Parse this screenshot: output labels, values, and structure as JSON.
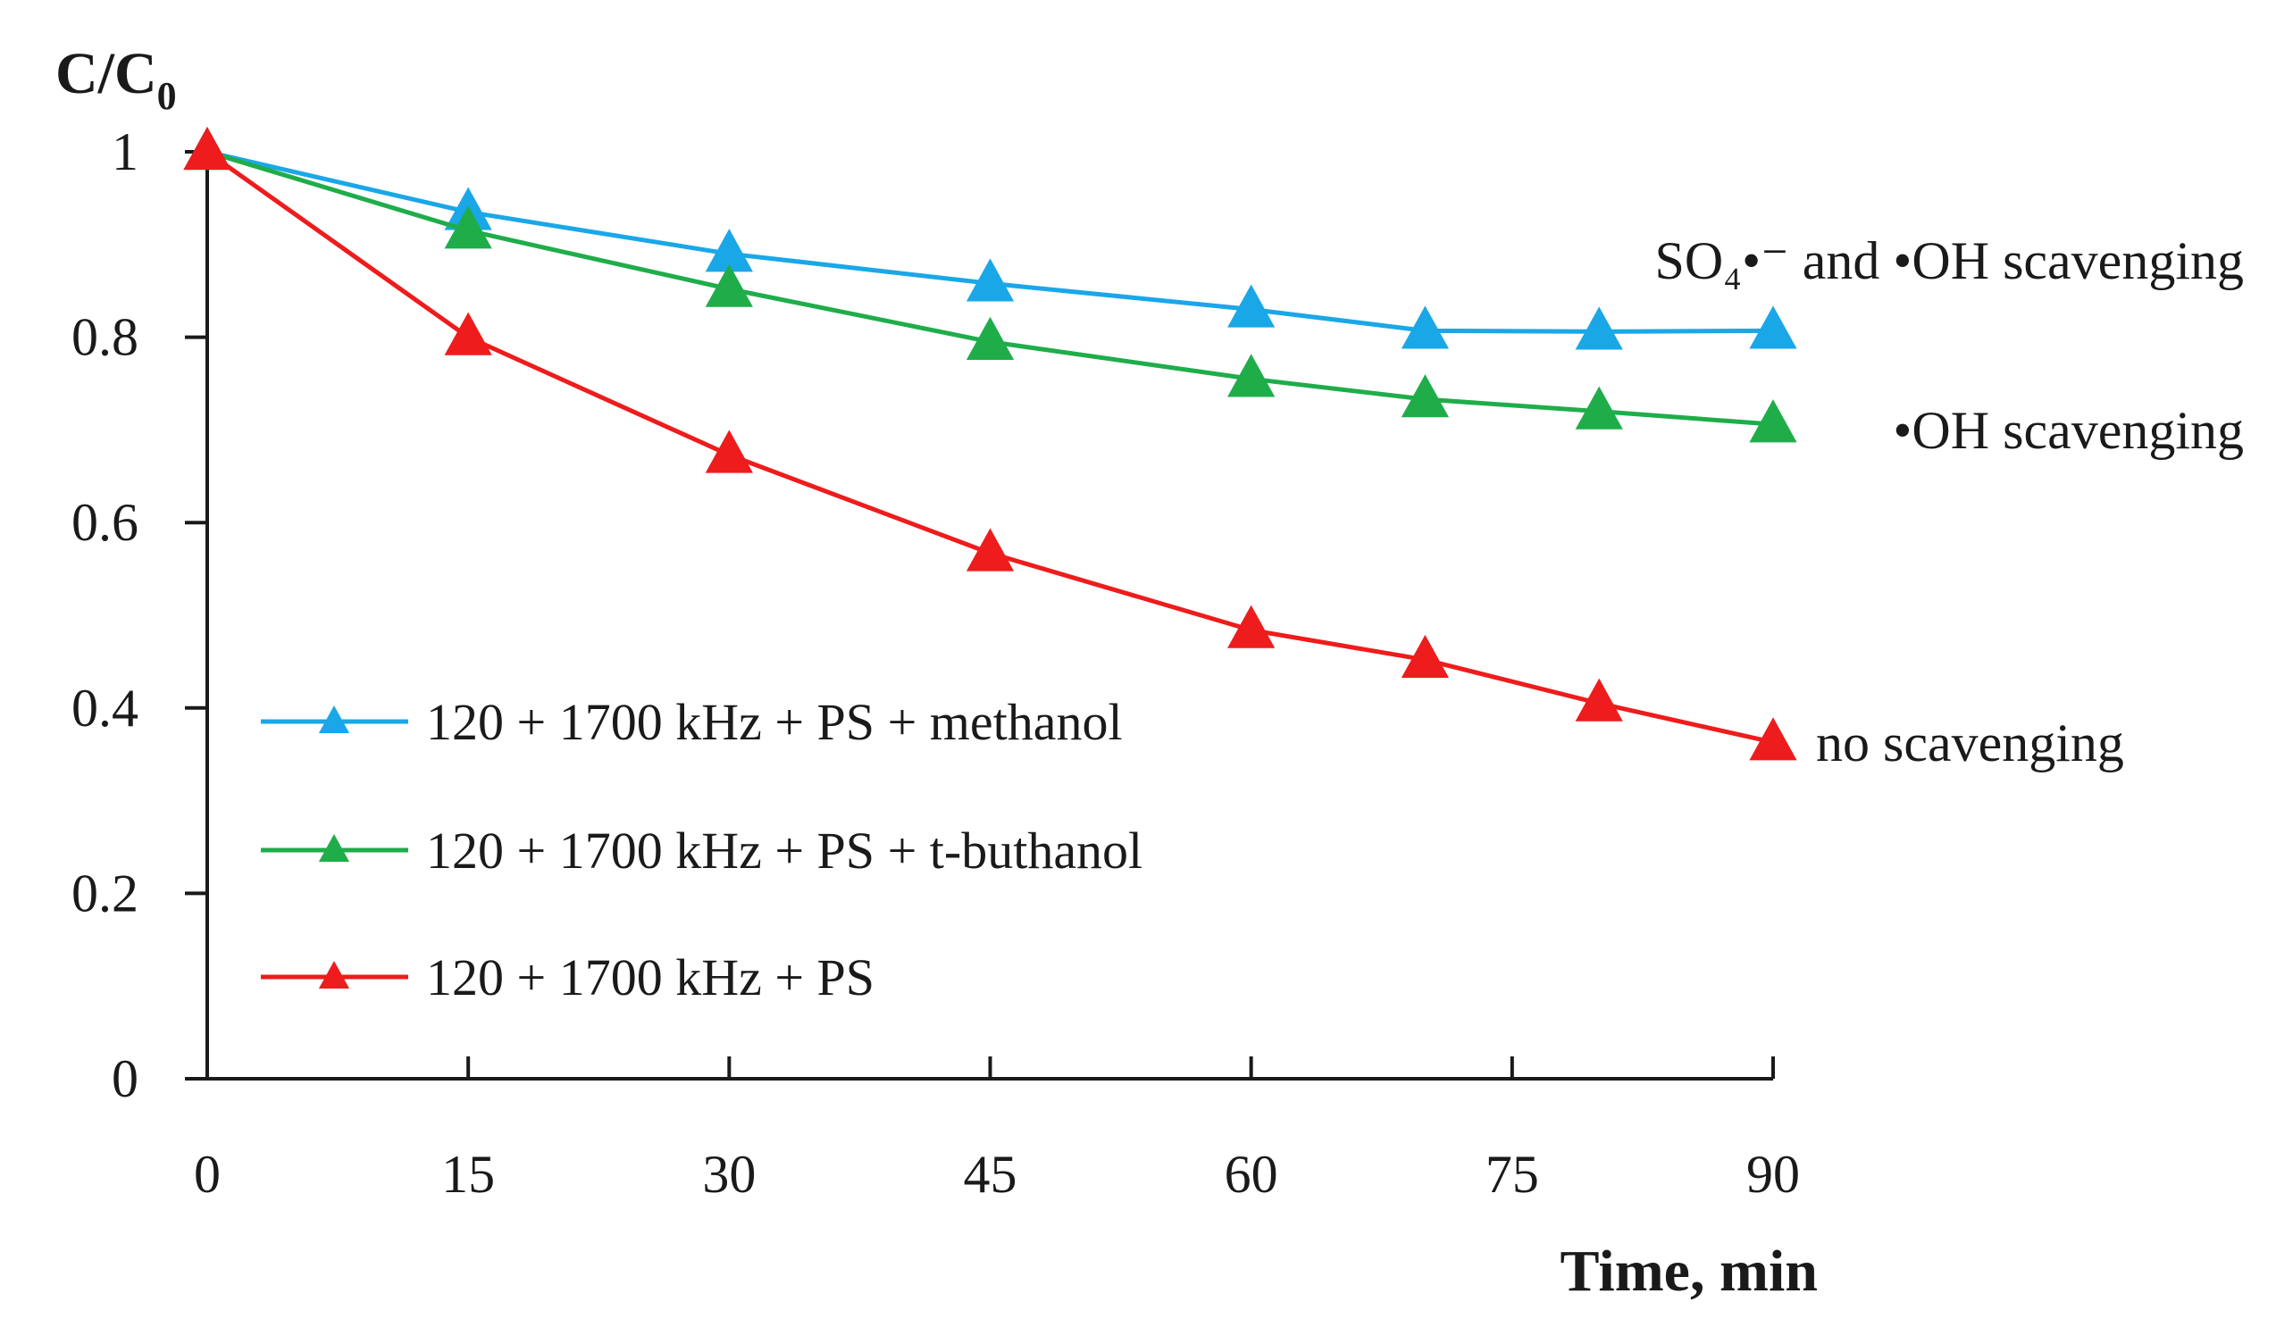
{
  "chart_data": {
    "type": "line",
    "title": "",
    "xlabel": "Time, min",
    "ylabel": "C/C",
    "ylabel_subscript": "0",
    "xlim": [
      0,
      90
    ],
    "ylim": [
      0,
      1
    ],
    "x_ticks": [
      "0",
      "15",
      "30",
      "45",
      "60",
      "75",
      "90"
    ],
    "y_ticks": [
      "0",
      "0.2",
      "0.4",
      "0.6",
      "0.8",
      "1"
    ],
    "x_tick_values": [
      0,
      15,
      30,
      45,
      60,
      75,
      90
    ],
    "y_tick_values": [
      0,
      0.2,
      0.4,
      0.6,
      0.8,
      1
    ],
    "grid": false,
    "legend_position": "bottom-left",
    "series": [
      {
        "name": "120 + 1700 kHz + PS + methanol",
        "color": "#1aa7e8",
        "marker": "triangle",
        "x": [
          0,
          15,
          30,
          45,
          60,
          70,
          80,
          90
        ],
        "values": [
          1.0,
          0.935,
          0.89,
          0.858,
          0.83,
          0.807,
          0.806,
          0.807
        ],
        "annotation": "SO₄•⁻ and •OH scavenging"
      },
      {
        "name": "120 + 1700 kHz + PS + t-buthanol",
        "color": "#1fad4a",
        "marker": "triangle",
        "x": [
          0,
          15,
          30,
          45,
          60,
          70,
          80,
          90
        ],
        "values": [
          1.0,
          0.915,
          0.852,
          0.795,
          0.755,
          0.733,
          0.72,
          0.706
        ],
        "annotation": "•OH scavenging"
      },
      {
        "name": "120 + 1700 kHz + PS",
        "color": "#ee1c1c",
        "marker": "triangle",
        "x": [
          0,
          15,
          30,
          45,
          60,
          70,
          80,
          90
        ],
        "values": [
          1.0,
          0.8,
          0.673,
          0.567,
          0.484,
          0.452,
          0.405,
          0.363
        ],
        "annotation": "no scavenging"
      }
    ]
  }
}
